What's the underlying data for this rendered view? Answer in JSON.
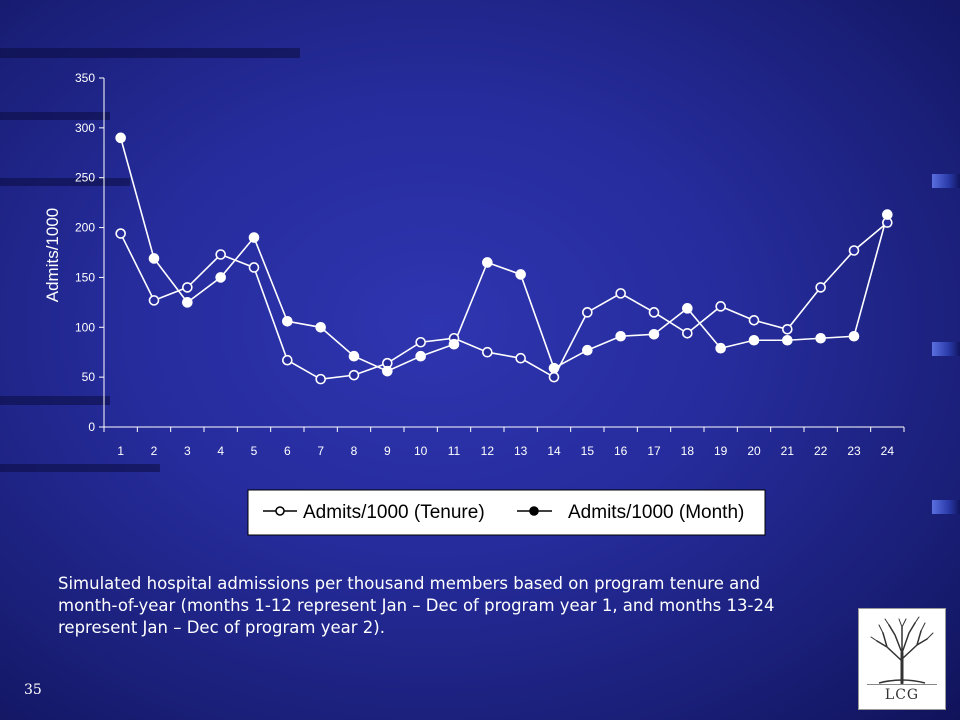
{
  "chart_data": {
    "type": "line",
    "ylabel": "Admits/1000",
    "ylim": [
      0,
      350
    ],
    "yticks": [
      0,
      50,
      100,
      150,
      200,
      250,
      300,
      350
    ],
    "x": [
      "1",
      "2",
      "3",
      "4",
      "5",
      "6",
      "7",
      "8",
      "9",
      "10",
      "11",
      "12",
      "13",
      "14",
      "15",
      "16",
      "17",
      "18",
      "19",
      "20",
      "21",
      "22",
      "23",
      "24"
    ],
    "series": [
      {
        "name": "Admits/1000 (Tenure)",
        "marker": "open-circle",
        "values": [
          194,
          127,
          140,
          173,
          160,
          67,
          48,
          52,
          64,
          85,
          89,
          75,
          69,
          50,
          115,
          134,
          115,
          94,
          121,
          107,
          98,
          140,
          177,
          205
        ]
      },
      {
        "name": "Admits/1000 (Month)",
        "marker": "filled-circle",
        "values": [
          290,
          169,
          125,
          150,
          190,
          106,
          100,
          71,
          56,
          71,
          83,
          165,
          153,
          59,
          77,
          91,
          93,
          119,
          79,
          87,
          87,
          89,
          91,
          213
        ]
      }
    ],
    "grid": false,
    "legend": "bottom"
  },
  "caption": "Simulated hospital admissions per thousand members based on program tenure and month-of-year (months 1-12 represent Jan – Dec of program year 1, and months 13-24 represent Jan – Dec of program year 2).",
  "slide_number": "35",
  "logo": {
    "text": "LCG",
    "icon": "tree-icon"
  },
  "colors": {
    "line": "#ffffff",
    "background": "#262c9c",
    "legend_bg": "#ffffff"
  }
}
